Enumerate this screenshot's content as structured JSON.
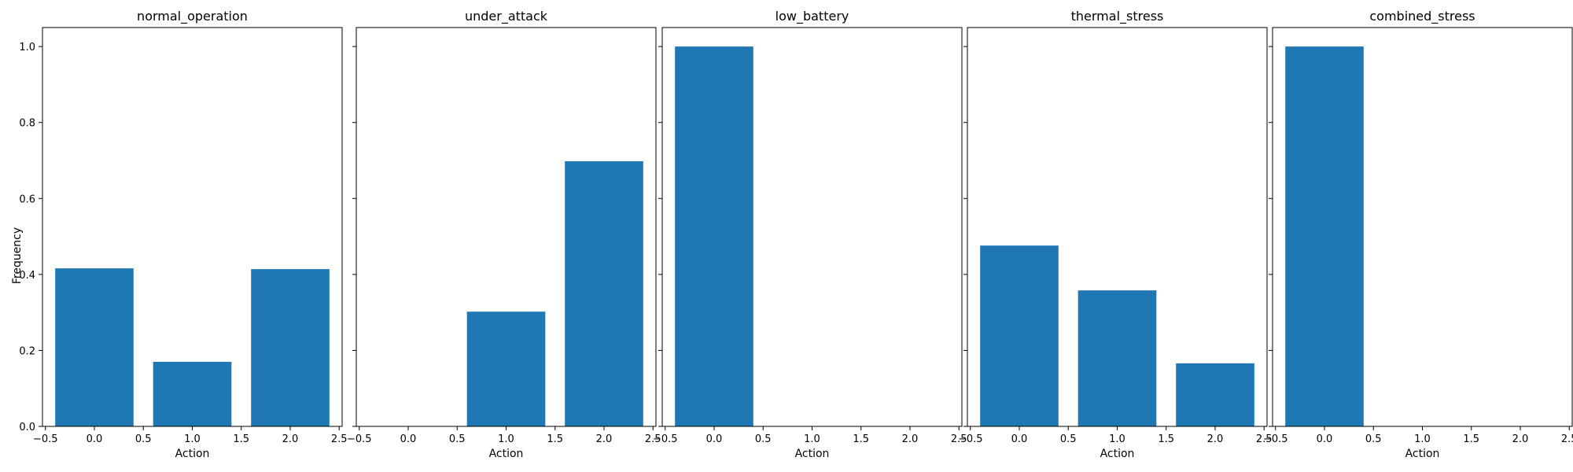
{
  "figure": {
    "ylabel": "Frequency",
    "xlabel": "Action"
  },
  "style": {
    "bar_color": "#1f77b4",
    "axis_color": "#000000",
    "background": "#ffffff"
  },
  "chart_data": [
    {
      "type": "bar",
      "title": "normal_operation",
      "x": [
        0,
        1,
        2
      ],
      "values": [
        0.416,
        0.17,
        0.414
      ],
      "bar_width": 0.8,
      "xlabel": "Action",
      "ylabel": "Frequency",
      "xlim": [
        -0.53,
        2.53
      ],
      "ylim": [
        0,
        1.05
      ],
      "xticks": [
        "−0.5",
        "0.0",
        "0.5",
        "1.0",
        "1.5",
        "2.0",
        "2.5"
      ],
      "yticks": [
        "0.0",
        "0.2",
        "0.4",
        "0.6",
        "0.8",
        "1.0"
      ],
      "grid": false
    },
    {
      "type": "bar",
      "title": "under_attack",
      "x": [
        0,
        1,
        2
      ],
      "values": [
        0.0,
        0.302,
        0.698
      ],
      "bar_width": 0.8,
      "xlabel": "Action",
      "xlim": [
        -0.53,
        2.53
      ],
      "ylim": [
        0,
        1.05
      ],
      "xticks": [
        "−0.5",
        "0.0",
        "0.5",
        "1.0",
        "1.5",
        "2.0",
        "2.5"
      ],
      "grid": false
    },
    {
      "type": "bar",
      "title": "low_battery",
      "x": [
        0,
        1,
        2
      ],
      "values": [
        1.0,
        0.0,
        0.0
      ],
      "bar_width": 0.8,
      "xlabel": "Action",
      "xlim": [
        -0.53,
        2.53
      ],
      "ylim": [
        0,
        1.05
      ],
      "xticks": [
        "−0.5",
        "0.0",
        "0.5",
        "1.0",
        "1.5",
        "2.0",
        "2.5"
      ],
      "grid": false
    },
    {
      "type": "bar",
      "title": "thermal_stress",
      "x": [
        0,
        1,
        2
      ],
      "values": [
        0.476,
        0.358,
        0.166
      ],
      "bar_width": 0.8,
      "xlabel": "Action",
      "xlim": [
        -0.53,
        2.53
      ],
      "ylim": [
        0,
        1.05
      ],
      "xticks": [
        "−0.5",
        "0.0",
        "0.5",
        "1.0",
        "1.5",
        "2.0",
        "2.5"
      ],
      "grid": false
    },
    {
      "type": "bar",
      "title": "combined_stress",
      "x": [
        0,
        1,
        2
      ],
      "values": [
        1.0,
        0.0,
        0.0
      ],
      "bar_width": 0.8,
      "xlabel": "Action",
      "xlim": [
        -0.53,
        2.53
      ],
      "ylim": [
        0,
        1.05
      ],
      "xticks": [
        "−0.5",
        "0.0",
        "0.5",
        "1.0",
        "1.5",
        "2.0",
        "2.5"
      ],
      "grid": false
    }
  ]
}
